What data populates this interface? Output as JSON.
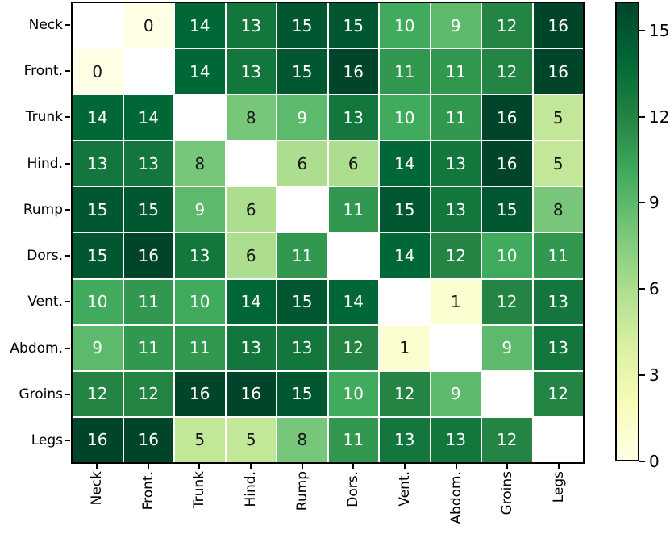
{
  "figure": {
    "background": "#ffffff",
    "border_color": "#000000"
  },
  "chart_data": {
    "type": "heatmap",
    "title": "",
    "xlabel": "",
    "ylabel": "",
    "categories": [
      "Neck",
      "Front.",
      "Trunk",
      "Hind.",
      "Rump",
      "Dors.",
      "Vent.",
      "Abdom.",
      "Groins",
      "Legs"
    ],
    "matrix": [
      [
        null,
        0,
        14,
        13,
        15,
        15,
        10,
        9,
        12,
        16
      ],
      [
        0,
        null,
        14,
        13,
        15,
        16,
        11,
        11,
        12,
        16
      ],
      [
        14,
        14,
        null,
        8,
        9,
        13,
        10,
        11,
        16,
        5
      ],
      [
        13,
        13,
        8,
        null,
        6,
        6,
        14,
        13,
        16,
        5
      ],
      [
        15,
        15,
        9,
        6,
        null,
        11,
        15,
        13,
        15,
        8
      ],
      [
        15,
        16,
        13,
        6,
        11,
        null,
        14,
        12,
        10,
        11
      ],
      [
        10,
        11,
        10,
        14,
        15,
        14,
        null,
        1,
        12,
        13
      ],
      [
        9,
        11,
        11,
        13,
        13,
        12,
        1,
        null,
        9,
        13
      ],
      [
        12,
        12,
        16,
        16,
        15,
        10,
        12,
        9,
        null,
        12
      ],
      [
        16,
        16,
        5,
        5,
        8,
        11,
        13,
        13,
        12,
        null
      ]
    ],
    "masked_diagonal": true,
    "vmin": 0,
    "vmax": 16,
    "colormap": "YlGn",
    "colormap_stops": [
      "#ffffe5",
      "#f7fcb9",
      "#d9f0a3",
      "#addd8e",
      "#78c679",
      "#41ab5d",
      "#238443",
      "#006837",
      "#004529"
    ],
    "grid_line_color": "#ffffff",
    "annotation_colors": {
      "light": "#ffffff",
      "dark": "#151515"
    },
    "colorbar": {
      "position": "right",
      "ticks": [
        0,
        3,
        6,
        9,
        12,
        15
      ]
    }
  }
}
